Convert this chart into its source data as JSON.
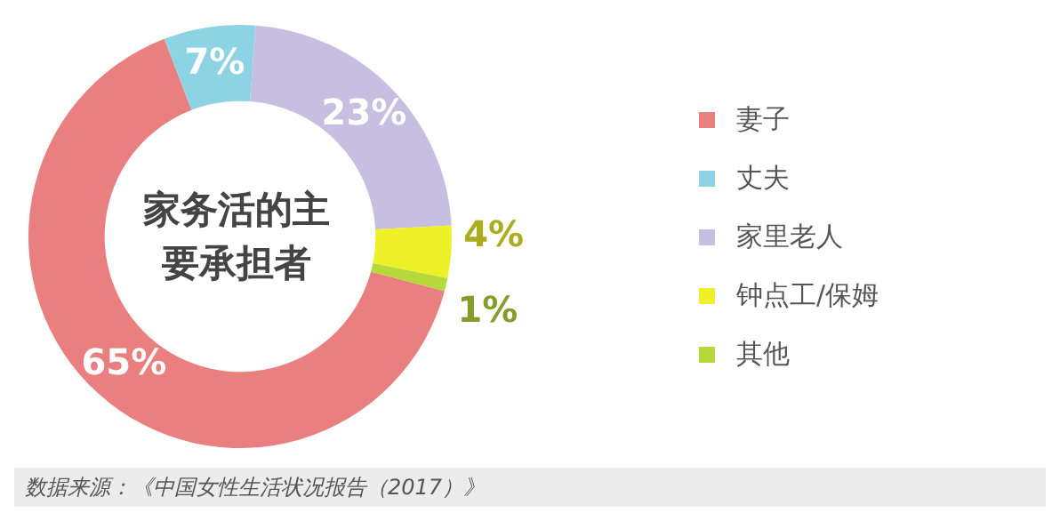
{
  "chart_data": {
    "type": "donut",
    "title": "家务活的主要承担者",
    "categories": [
      "妻子",
      "丈夫",
      "家里老人",
      "钟点工/保姆",
      "其他"
    ],
    "values": [
      65,
      7,
      23,
      4,
      1
    ],
    "colors": [
      "#ea7f80",
      "#8dd3e3",
      "#c6bfe1",
      "#eef02a",
      "#b7d83a"
    ],
    "value_labels": [
      "65%",
      "7%",
      "23%",
      "4%",
      "1%"
    ],
    "legend": "right",
    "annotations": [
      "数据来源：《中国女性生活状况报告（2017）》"
    ]
  }
}
